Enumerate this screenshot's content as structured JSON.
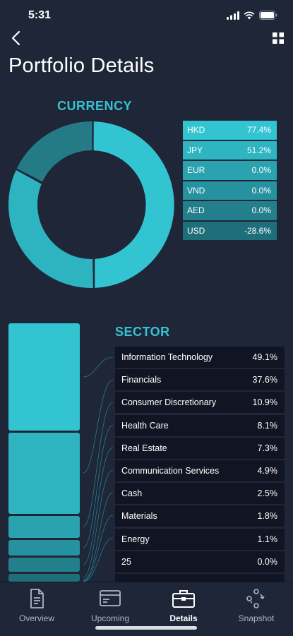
{
  "status_bar": {
    "time": "5:31"
  },
  "header": {
    "title": "Portfolio Details"
  },
  "currency": {
    "heading": "CURRENCY",
    "rows": [
      {
        "code": "HKD",
        "value": "77.4%",
        "color": "#33c4d2"
      },
      {
        "code": "JPY",
        "value": "51.2%",
        "color": "#2fb4c2"
      },
      {
        "code": "EUR",
        "value": "0.0%",
        "color": "#2aa2b0"
      },
      {
        "code": "VND",
        "value": "0.0%",
        "color": "#27929f"
      },
      {
        "code": "AED",
        "value": "0.0%",
        "color": "#237f8c"
      },
      {
        "code": "USD",
        "value": "-28.6%",
        "color": "#1f6f7b"
      }
    ]
  },
  "sector": {
    "heading": "SECTOR",
    "rows": [
      {
        "name": "Information Technology",
        "value": "49.1%"
      },
      {
        "name": "Financials",
        "value": "37.6%"
      },
      {
        "name": "Consumer Discretionary",
        "value": "10.9%"
      },
      {
        "name": "Health Care",
        "value": "8.1%"
      },
      {
        "name": "Real Estate",
        "value": "7.3%"
      },
      {
        "name": "Communication Services",
        "value": "4.9%"
      },
      {
        "name": "Cash",
        "value": "2.5%"
      },
      {
        "name": "Materials",
        "value": "1.8%"
      },
      {
        "name": "Energy",
        "value": "1.1%"
      },
      {
        "name": "25",
        "value": "0.0%"
      },
      {
        "name": "",
        "value": ""
      }
    ]
  },
  "tabs": [
    {
      "label": "Overview",
      "icon": "document-icon",
      "active": false
    },
    {
      "label": "Upcoming",
      "icon": "calendar-card-icon",
      "active": false
    },
    {
      "label": "Details",
      "icon": "briefcase-icon",
      "active": true
    },
    {
      "label": "Snapshot",
      "icon": "camera-rotate-icon",
      "active": false
    }
  ],
  "colors": {
    "accent": "#34c3d2",
    "background": "#1e2638",
    "row_bg": "#111523"
  }
}
